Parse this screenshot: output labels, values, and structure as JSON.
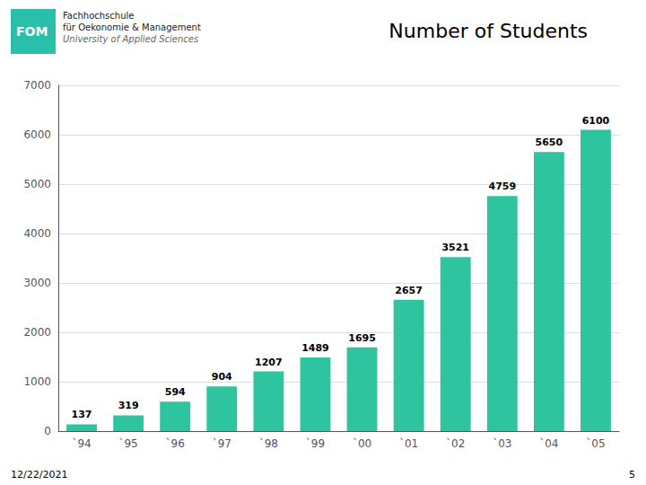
{
  "chart_data": {
    "type": "bar",
    "title": "Number of Students",
    "categories": [
      "`94",
      "`95",
      "`96",
      "`97",
      "`98",
      "`99",
      "`00",
      "`01",
      "`02",
      "`03",
      "`04",
      "`05"
    ],
    "values": [
      137,
      319,
      594,
      904,
      1207,
      1489,
      1695,
      2657,
      3521,
      4759,
      5650,
      6100
    ],
    "color": "#2EC4A0",
    "ylim": [
      0,
      7000
    ],
    "yticks": [
      0,
      1000,
      2000,
      3000,
      4000,
      5000,
      6000,
      7000
    ],
    "grid": true,
    "data_labels": true,
    "annotations": [
      "FOM",
      "Fachhochschule",
      "für Oekonomie & Management",
      "University of Applied Sciences",
      "12/22/2021",
      "5"
    ]
  }
}
